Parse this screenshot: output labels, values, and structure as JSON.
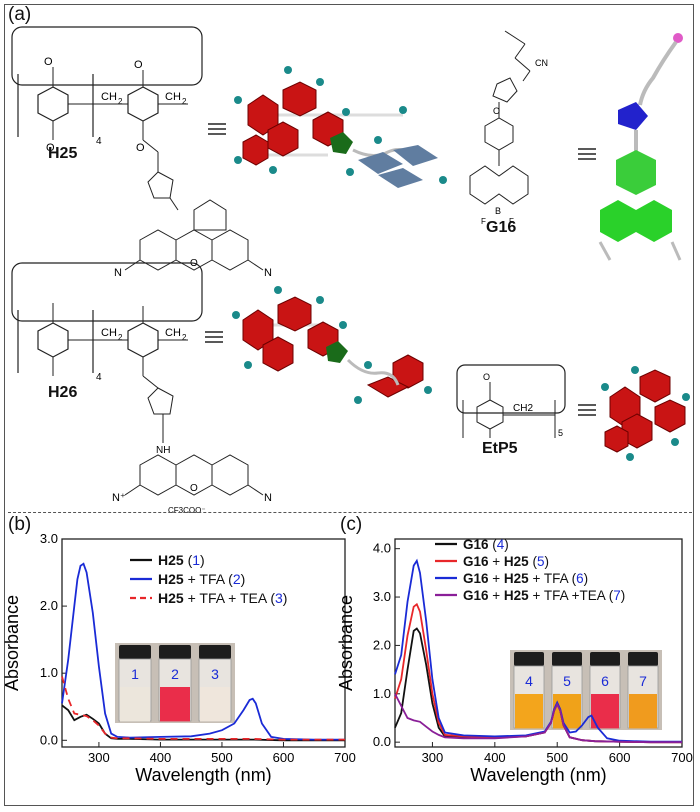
{
  "panel_labels": {
    "a": "(a)",
    "b": "(b)",
    "c": "(c)"
  },
  "molecules": {
    "h25": "H25",
    "h26": "H26",
    "g16": "G16",
    "etp5": "EtP5",
    "counterion": "CF3COO⁻",
    "subscript_4": "4",
    "subscript_5": "5",
    "ch2": "CH2",
    "cn": "CN"
  },
  "colors": {
    "black": "#111111",
    "red": "#e8272a",
    "blue": "#1a2bd6",
    "purple": "#8a1f98",
    "cyan": "#1e9a8a"
  },
  "chart_data": [
    {
      "type": "line",
      "panel": "(b)",
      "xlabel": "Wavelength (nm)",
      "ylabel": "Absorbance",
      "xlim": [
        240,
        700
      ],
      "ylim": [
        -0.1,
        3.0
      ],
      "xticks": [
        "300",
        "400",
        "500",
        "600",
        "700"
      ],
      "yticks": [
        "0.0",
        "1.0",
        "2.0",
        "3.0"
      ],
      "legend_position": "top-right",
      "series": [
        {
          "name": "H25 (1)",
          "legend_bold": "H25",
          "legend_rest": " (",
          "legend_num": "1",
          "color": "#111111",
          "dash": false,
          "x": [
            240,
            250,
            260,
            270,
            280,
            290,
            300,
            310,
            320,
            330,
            350,
            400,
            450,
            500,
            550,
            600,
            650,
            700
          ],
          "y": [
            0.52,
            0.45,
            0.3,
            0.35,
            0.38,
            0.32,
            0.25,
            0.1,
            0.03,
            0.02,
            0.02,
            0.01,
            0.01,
            0.01,
            0.01,
            0.0,
            0.0,
            0.0
          ]
        },
        {
          "name": "H25 + TFA (2)",
          "legend_bold": "H25",
          "legend_rest": " + TFA (",
          "legend_num": "2",
          "color": "#1a2bd6",
          "dash": false,
          "x": [
            240,
            250,
            260,
            265,
            270,
            275,
            280,
            290,
            300,
            310,
            320,
            330,
            350,
            400,
            450,
            480,
            500,
            520,
            535,
            545,
            550,
            555,
            565,
            580,
            600,
            650,
            700
          ],
          "y": [
            0.55,
            1.2,
            2.0,
            2.4,
            2.6,
            2.63,
            2.5,
            1.9,
            1.1,
            0.4,
            0.1,
            0.05,
            0.04,
            0.05,
            0.06,
            0.1,
            0.15,
            0.25,
            0.45,
            0.6,
            0.62,
            0.55,
            0.25,
            0.05,
            0.02,
            0.01,
            0.01
          ]
        },
        {
          "name": "H25 + TFA + TEA (3)",
          "legend_bold": "H25",
          "legend_rest": " + TFA + TEA (",
          "legend_num": "3",
          "color": "#e8272a",
          "dash": true,
          "x": [
            240,
            250,
            260,
            270,
            280,
            290,
            300,
            310,
            320,
            330,
            350,
            400,
            450,
            500,
            550,
            600,
            650,
            700
          ],
          "y": [
            0.95,
            0.62,
            0.4,
            0.38,
            0.36,
            0.3,
            0.22,
            0.1,
            0.04,
            0.03,
            0.03,
            0.02,
            0.02,
            0.02,
            0.02,
            0.01,
            0.01,
            0.01
          ]
        }
      ],
      "inset_vials": [
        "1",
        "2",
        "3"
      ]
    },
    {
      "type": "line",
      "panel": "(c)",
      "xlabel": "Wavelength (nm)",
      "ylabel": "Absorbance",
      "xlim": [
        240,
        700
      ],
      "ylim": [
        -0.1,
        4.2
      ],
      "xticks": [
        "300",
        "400",
        "500",
        "600",
        "700"
      ],
      "yticks": [
        "0.0",
        "1.0",
        "2.0",
        "3.0",
        "4.0"
      ],
      "legend_position": "top-right",
      "series": [
        {
          "name": "G16 (4)",
          "legend_bold": "G16",
          "legend_rest": " (",
          "legend_num": "4",
          "color": "#111111",
          "dash": false,
          "x": [
            240,
            250,
            260,
            270,
            275,
            280,
            290,
            300,
            310,
            320,
            350,
            400,
            450,
            480,
            490,
            495,
            500,
            505,
            510,
            520,
            540,
            560,
            600,
            650,
            700
          ],
          "y": [
            0.3,
            0.6,
            1.5,
            2.3,
            2.35,
            2.25,
            1.6,
            0.8,
            0.3,
            0.12,
            0.1,
            0.1,
            0.12,
            0.2,
            0.4,
            0.65,
            0.8,
            0.65,
            0.35,
            0.1,
            0.04,
            0.02,
            0.01,
            0.0,
            0.0
          ]
        },
        {
          "name": "G16 + H25 (5)",
          "legend_bold": "G16",
          "legend_rest": " + ",
          "legend_bold2": "H25",
          "legend_rest2": " (",
          "legend_num": "5",
          "color": "#e8272a",
          "dash": false,
          "x": [
            240,
            250,
            260,
            270,
            275,
            280,
            290,
            300,
            310,
            320,
            350,
            400,
            450,
            480,
            490,
            495,
            500,
            505,
            510,
            520,
            540,
            560,
            600,
            650,
            700
          ],
          "y": [
            0.9,
            1.3,
            2.2,
            2.8,
            2.85,
            2.7,
            1.9,
            1.0,
            0.4,
            0.15,
            0.12,
            0.1,
            0.12,
            0.2,
            0.4,
            0.65,
            0.8,
            0.65,
            0.35,
            0.1,
            0.04,
            0.02,
            0.01,
            0.0,
            0.0
          ]
        },
        {
          "name": "G16 + H25 + TFA (6)",
          "legend_bold": "G16",
          "legend_rest": " + ",
          "legend_bold2": "H25",
          "legend_rest2": " + TFA (",
          "legend_num": "6",
          "color": "#1a2bd6",
          "dash": false,
          "x": [
            240,
            250,
            260,
            270,
            275,
            280,
            290,
            300,
            310,
            320,
            350,
            400,
            450,
            480,
            490,
            495,
            500,
            505,
            510,
            520,
            530,
            540,
            550,
            555,
            565,
            580,
            600,
            650,
            700
          ],
          "y": [
            1.4,
            1.8,
            2.9,
            3.65,
            3.75,
            3.5,
            2.5,
            1.3,
            0.5,
            0.2,
            0.14,
            0.12,
            0.14,
            0.22,
            0.42,
            0.68,
            0.82,
            0.68,
            0.4,
            0.2,
            0.22,
            0.35,
            0.52,
            0.55,
            0.3,
            0.08,
            0.03,
            0.01,
            0.01
          ]
        },
        {
          "name": "G16 + H25 + TFA +TEA (7)",
          "legend_bold": "G16",
          "legend_rest": " + ",
          "legend_bold2": "H25",
          "legend_rest2": " + TFA +TEA (",
          "legend_num": "7",
          "color": "#8a1f98",
          "dash": false,
          "x": [
            240,
            250,
            260,
            270,
            280,
            290,
            300,
            310,
            320,
            350,
            400,
            450,
            480,
            490,
            495,
            500,
            505,
            510,
            520,
            540,
            560,
            600,
            650,
            700
          ],
          "y": [
            1.0,
            0.75,
            0.5,
            0.45,
            0.42,
            0.32,
            0.22,
            0.15,
            0.1,
            0.08,
            0.08,
            0.12,
            0.2,
            0.4,
            0.65,
            0.78,
            0.65,
            0.35,
            0.1,
            0.04,
            0.02,
            0.01,
            0.0,
            0.0
          ]
        }
      ],
      "inset_vials": [
        "4",
        "5",
        "6",
        "7"
      ]
    }
  ]
}
